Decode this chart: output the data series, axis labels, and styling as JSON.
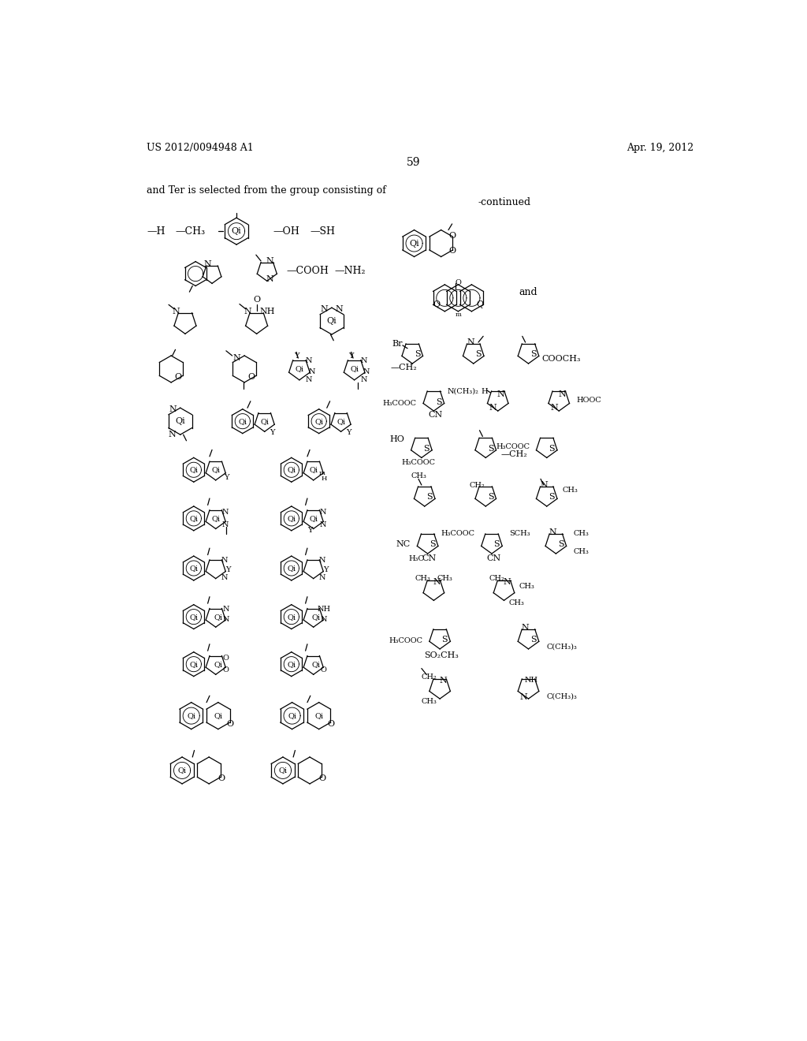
{
  "page_header_left": "US 2012/0094948 A1",
  "page_header_right": "Apr. 19, 2012",
  "page_number": "59",
  "continued_label": "-continued",
  "intro_text": "and Ter is selected from the group consisting of",
  "background_color": "#ffffff"
}
